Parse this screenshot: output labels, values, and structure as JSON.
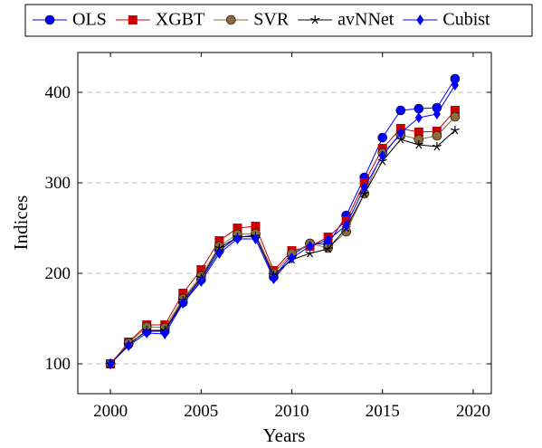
{
  "chart_data": {
    "type": "line",
    "x_label": "Years",
    "y_label": "Indices",
    "x": [
      2000,
      2001,
      2002,
      2003,
      2004,
      2005,
      2006,
      2007,
      2008,
      2009,
      2010,
      2011,
      2012,
      2013,
      2014,
      2015,
      2016,
      2017,
      2018,
      2019
    ],
    "series": [
      {
        "name": "OLS",
        "color": "#0000ff",
        "marker": "circle",
        "values": [
          100,
          122,
          136,
          136,
          168,
          193,
          225,
          240,
          242,
          196,
          220,
          233,
          232,
          264,
          306,
          350,
          380,
          382,
          383,
          415
        ]
      },
      {
        "name": "XGBT",
        "color": "#cc0000",
        "marker": "square",
        "values": [
          100,
          124,
          143,
          143,
          178,
          204,
          236,
          250,
          252,
          203,
          225,
          230,
          240,
          258,
          300,
          338,
          360,
          356,
          357,
          380
        ]
      },
      {
        "name": "SVR",
        "color": "#8b6a3e",
        "marker": "circle",
        "values": [
          100,
          123,
          141,
          140,
          172,
          197,
          230,
          243,
          244,
          200,
          222,
          233,
          228,
          246,
          288,
          333,
          353,
          348,
          352,
          373
        ]
      },
      {
        "name": "avNNet",
        "color": "#000000",
        "marker": "star",
        "values": [
          100,
          121,
          137,
          137,
          170,
          195,
          228,
          240,
          241,
          198,
          215,
          222,
          227,
          250,
          288,
          324,
          348,
          342,
          340,
          358
        ]
      },
      {
        "name": "Cubist",
        "color": "#0000ff",
        "marker": "diamond",
        "values": [
          100,
          120,
          134,
          133,
          167,
          191,
          222,
          238,
          238,
          194,
          217,
          230,
          237,
          253,
          295,
          330,
          355,
          372,
          376,
          408
        ]
      }
    ],
    "xlim": [
      1998.2,
      2021
    ],
    "xticks": [
      2000,
      2005,
      2010,
      2015,
      2020
    ],
    "ylim": [
      67,
      444
    ],
    "yticks": [
      100,
      200,
      300,
      400
    ],
    "grid": true,
    "legend": "top"
  }
}
